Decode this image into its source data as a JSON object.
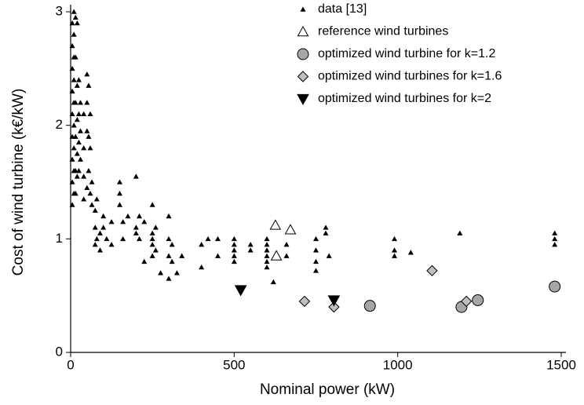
{
  "chart_data": {
    "type": "scatter",
    "xlabel": "Nominal power (kW)",
    "ylabel": "Cost of wind turbine (k€/kW)",
    "xlim": [
      0,
      1500
    ],
    "ylim": [
      0,
      3
    ],
    "xticks": [
      0,
      500,
      1000,
      1500
    ],
    "yticks": [
      0,
      1,
      2,
      3
    ],
    "grid": false,
    "legend": "upper right",
    "series": [
      {
        "name": "data [13]",
        "marker": "triangle",
        "color": "#000000",
        "x": [
          5,
          5,
          5,
          5,
          5,
          5,
          5,
          5,
          5,
          10,
          10,
          10,
          10,
          10,
          10,
          10,
          10,
          10,
          15,
          15,
          15,
          15,
          15,
          15,
          20,
          20,
          20,
          20,
          20,
          25,
          25,
          25,
          25,
          30,
          30,
          30,
          40,
          40,
          40,
          40,
          50,
          50,
          50,
          50,
          55,
          55,
          55,
          60,
          60,
          60,
          65,
          65,
          75,
          75,
          75,
          80,
          80,
          90,
          90,
          100,
          100,
          110,
          125,
          125,
          150,
          150,
          150,
          160,
          160,
          175,
          200,
          200,
          200,
          210,
          210,
          225,
          225,
          250,
          250,
          250,
          250,
          250,
          260,
          260,
          275,
          300,
          300,
          300,
          300,
          310,
          310,
          325,
          340,
          400,
          400,
          420,
          450,
          450,
          500,
          500,
          500,
          500,
          500,
          550,
          550,
          600,
          600,
          600,
          600,
          600,
          600,
          620,
          660,
          660,
          750,
          750,
          750,
          750,
          780,
          780,
          790,
          990,
          990,
          990,
          1040,
          1190,
          1480,
          1480,
          1480
        ],
        "y": [
          2.9,
          2.7,
          2.5,
          2.3,
          2.1,
          1.9,
          1.7,
          1.5,
          1.3,
          3.0,
          2.8,
          2.6,
          2.4,
          2.2,
          2.0,
          1.8,
          1.6,
          1.4,
          2.95,
          2.6,
          2.2,
          1.9,
          1.6,
          1.4,
          2.9,
          2.35,
          2.05,
          1.75,
          1.55,
          2.4,
          2.1,
          1.85,
          1.6,
          2.2,
          1.95,
          1.7,
          2.1,
          1.8,
          1.55,
          1.35,
          2.45,
          2.2,
          1.95,
          1.45,
          2.35,
          1.9,
          1.6,
          2.1,
          1.8,
          1.4,
          1.5,
          1.3,
          1.25,
          1.1,
          0.95,
          1.35,
          1.0,
          1.05,
          0.9,
          1.2,
          1.1,
          1.0,
          0.95,
          1.15,
          1.5,
          1.4,
          1.3,
          1.15,
          1.0,
          1.2,
          1.55,
          1.1,
          1.05,
          1.2,
          1.0,
          0.8,
          1.15,
          1.3,
          1.05,
          0.95,
          0.85,
          1.0,
          0.9,
          1.1,
          0.7,
          1.2,
          1.0,
          0.85,
          0.65,
          0.95,
          0.8,
          0.7,
          0.85,
          0.75,
          0.95,
          1.0,
          0.85,
          1.0,
          1.0,
          0.95,
          0.9,
          0.85,
          0.8,
          0.95,
          0.9,
          1.0,
          0.95,
          0.9,
          0.85,
          0.8,
          0.75,
          0.62,
          0.85,
          0.95,
          1.0,
          0.9,
          0.8,
          0.72,
          1.1,
          1.05,
          0.85,
          1.0,
          0.9,
          0.85,
          0.88,
          1.05,
          1.05,
          1.0,
          0.95
        ]
      },
      {
        "name": "reference wind turbines",
        "marker": "triangle-open",
        "color": "#ffffff",
        "x": [
          626,
          672,
          629
        ],
        "y": [
          1.12,
          1.08,
          0.85
        ]
      },
      {
        "name": "optimized wind turbine for k=1.2",
        "marker": "circle",
        "color": "#a6a6a6",
        "x": [
          915,
          1195,
          1245,
          1480
        ],
        "y": [
          0.41,
          0.4,
          0.46,
          0.58
        ]
      },
      {
        "name": "optimized wind turbines for k=1.6",
        "marker": "diamond",
        "color": "#bfbfbf",
        "x": [
          715,
          805,
          1105,
          1210
        ],
        "y": [
          0.45,
          0.4,
          0.72,
          0.45
        ]
      },
      {
        "name": "optimized wind turbines for k=2",
        "marker": "triangle-down",
        "color": "#000000",
        "x": [
          520,
          805
        ],
        "y": [
          0.55,
          0.46
        ]
      }
    ]
  }
}
